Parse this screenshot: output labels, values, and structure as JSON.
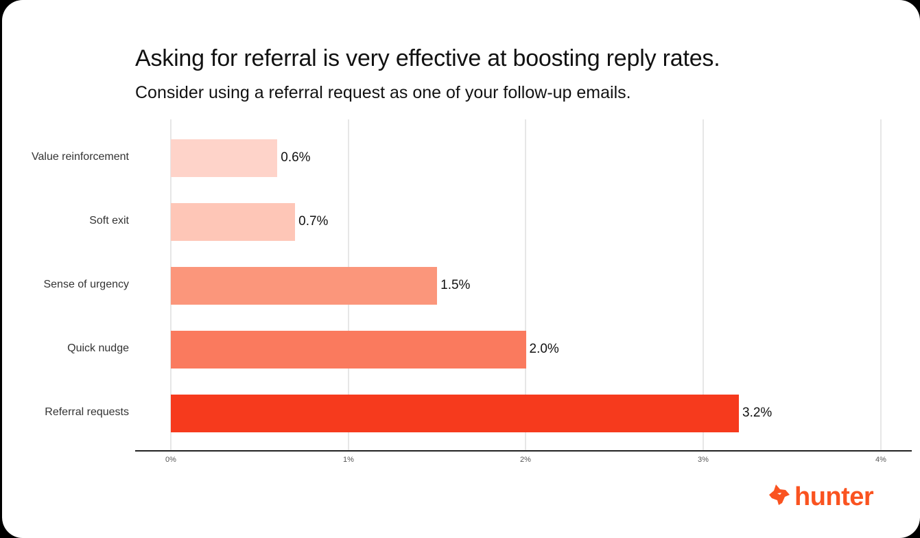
{
  "header": {
    "title": "Asking for referral is very effective at boosting reply rates.",
    "subtitle": "Consider using a referral request as one of your follow-up emails."
  },
  "chart_data": {
    "type": "bar",
    "orientation": "horizontal",
    "title": "Asking for referral is very effective at boosting reply rates.",
    "subtitle": "Consider using a referral request as one of your follow-up emails.",
    "categories": [
      "Value reinforcement",
      "Soft exit",
      "Sense of urgency",
      "Quick nudge",
      "Referral requests"
    ],
    "values": [
      0.6,
      0.7,
      1.5,
      2.0,
      3.2
    ],
    "value_labels": [
      "0.6%",
      "0.7%",
      "1.5%",
      "2.0%",
      "3.2%"
    ],
    "colors": [
      "#fed3c9",
      "#fec6b7",
      "#fb967b",
      "#fa7a5e",
      "#f63a1d"
    ],
    "xlabel": "",
    "ylabel": "",
    "xlim": [
      0,
      4
    ],
    "xticks": [
      "0%",
      "1%",
      "2%",
      "3%",
      "4%"
    ],
    "grid": true,
    "legend": null
  },
  "brand": {
    "logo_text": "hunter",
    "logo_icon": "fox-head-icon",
    "color": "#fa5320"
  }
}
